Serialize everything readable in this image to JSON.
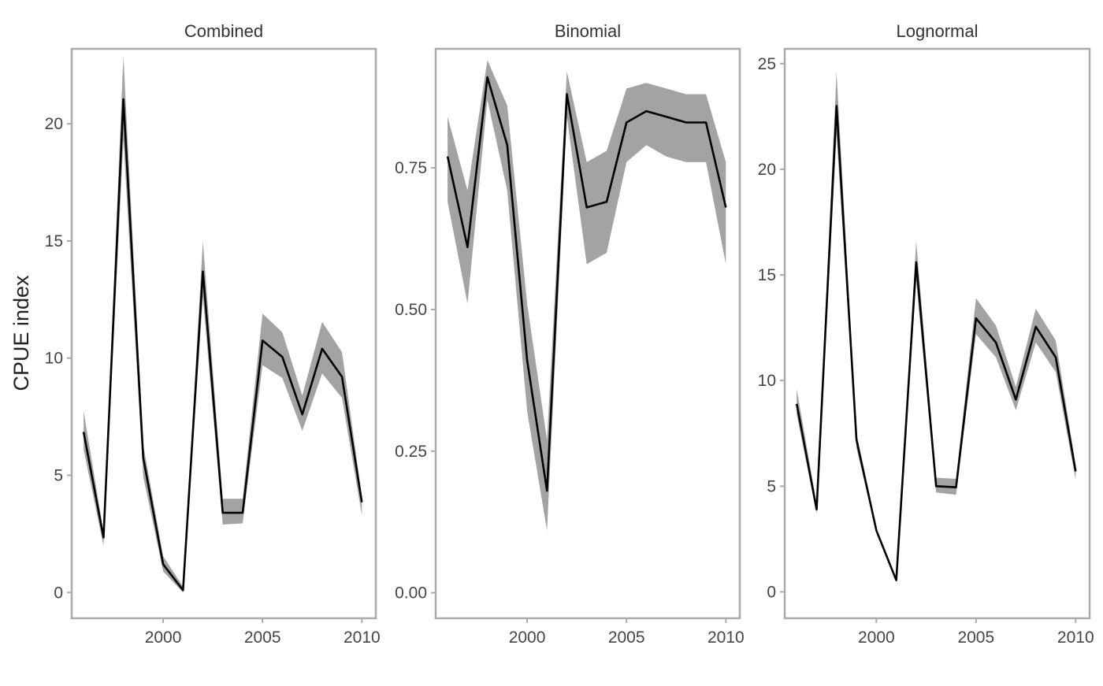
{
  "chart_data": {
    "type": "line",
    "ylabel": "CPUE index",
    "x": [
      1996,
      1997,
      1998,
      1999,
      2000,
      2001,
      2002,
      2003,
      2004,
      2005,
      2006,
      2007,
      2008,
      2009,
      2010
    ],
    "panels": [
      {
        "title": "Combined",
        "xlim": [
          1995.4,
          2010.7
        ],
        "ylim": [
          -1.1,
          23.2
        ],
        "xticks": [
          2000,
          2005,
          2010
        ],
        "yticks": [
          0,
          5,
          10,
          15,
          20
        ],
        "ytick_labels": [
          "0",
          "5",
          "10",
          "15",
          "20"
        ],
        "values": [
          6.85,
          2.35,
          21.05,
          5.75,
          1.2,
          0.1,
          13.7,
          3.4,
          3.4,
          10.75,
          10.05,
          7.6,
          10.4,
          9.2,
          3.85
        ],
        "lower": [
          6.1,
          2.0,
          19.3,
          4.95,
          0.9,
          0.0,
          12.6,
          2.9,
          2.95,
          9.7,
          9.15,
          6.9,
          9.35,
          8.3,
          3.3
        ],
        "upper": [
          7.75,
          2.6,
          22.9,
          6.3,
          1.55,
          0.25,
          15.0,
          4.0,
          4.0,
          11.9,
          11.1,
          8.4,
          11.55,
          10.25,
          4.1
        ]
      },
      {
        "title": "Binomial",
        "xlim": [
          1995.4,
          2010.7
        ],
        "ylim": [
          -0.045,
          0.96
        ],
        "xticks": [
          2000,
          2005,
          2010
        ],
        "yticks": [
          0,
          0.25,
          0.5,
          0.75
        ],
        "ytick_labels": [
          "0.00",
          "0.25",
          "0.50",
          "0.75"
        ],
        "values": [
          0.77,
          0.61,
          0.91,
          0.79,
          0.41,
          0.18,
          0.88,
          0.68,
          0.69,
          0.83,
          0.85,
          0.84,
          0.83,
          0.83,
          0.68
        ],
        "lower": [
          0.69,
          0.51,
          0.87,
          0.71,
          0.32,
          0.11,
          0.84,
          0.58,
          0.6,
          0.76,
          0.79,
          0.77,
          0.76,
          0.76,
          0.58
        ],
        "upper": [
          0.84,
          0.71,
          0.94,
          0.86,
          0.51,
          0.27,
          0.92,
          0.76,
          0.78,
          0.89,
          0.9,
          0.89,
          0.88,
          0.88,
          0.76
        ]
      },
      {
        "title": "Lognormal",
        "xlim": [
          1995.4,
          2010.7
        ],
        "ylim": [
          -1.25,
          25.7
        ],
        "xticks": [
          2000,
          2005,
          2010
        ],
        "yticks": [
          0,
          5,
          10,
          15,
          20,
          25
        ],
        "ytick_labels": [
          "0",
          "5",
          "10",
          "15",
          "20",
          "25"
        ],
        "values": [
          8.9,
          3.9,
          23.0,
          7.2,
          2.9,
          0.55,
          15.6,
          5.0,
          4.95,
          12.95,
          11.8,
          9.1,
          12.55,
          11.1,
          5.7
        ],
        "lower": [
          8.4,
          3.7,
          21.6,
          6.8,
          2.8,
          0.5,
          14.7,
          4.7,
          4.6,
          12.2,
          11.1,
          8.6,
          11.8,
          10.4,
          5.3
        ],
        "upper": [
          9.6,
          4.2,
          24.6,
          7.5,
          3.0,
          0.65,
          16.6,
          5.4,
          5.35,
          13.9,
          12.6,
          9.7,
          13.4,
          11.9,
          6.0
        ]
      }
    ],
    "grid": false,
    "legend": "none",
    "colors": {
      "band": "#a3a3a3",
      "line": "#000000",
      "frame": "#aaaaaa"
    }
  }
}
